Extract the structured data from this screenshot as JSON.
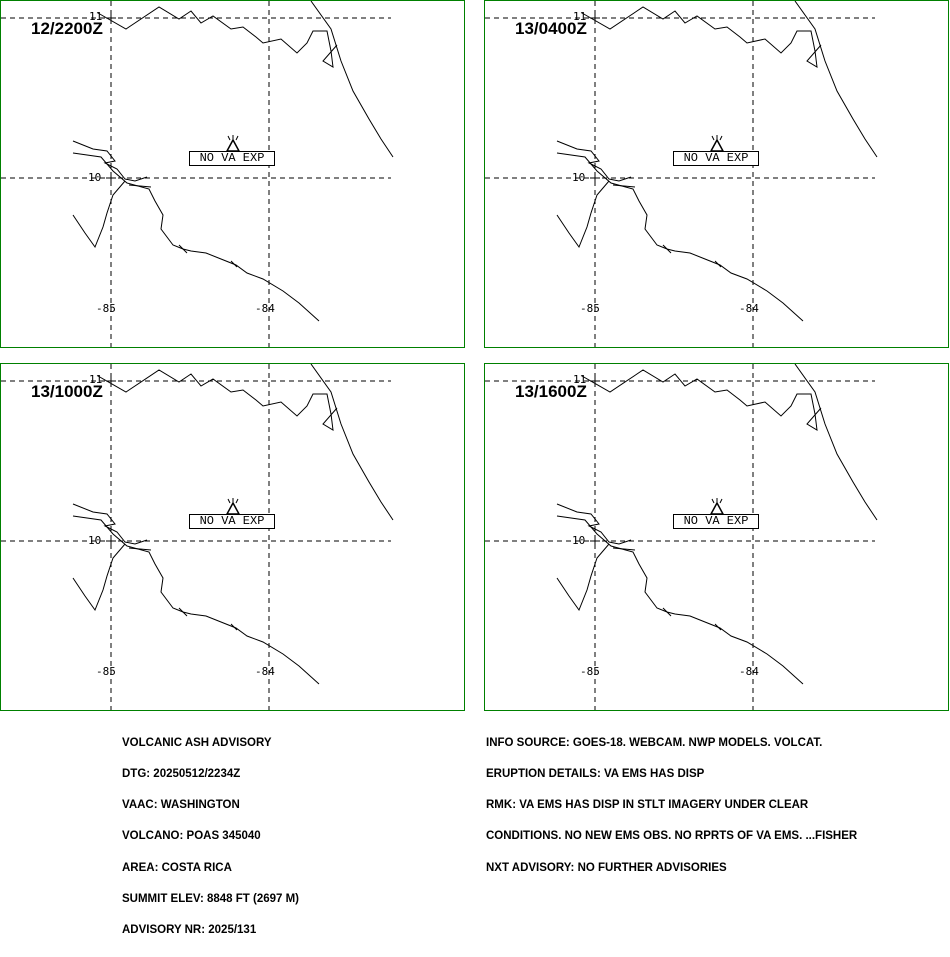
{
  "panels": [
    {
      "time": "12/2200Z",
      "label": "NO VA EXP"
    },
    {
      "time": "13/0400Z",
      "label": "NO VA EXP"
    },
    {
      "time": "13/1000Z",
      "label": "NO VA EXP"
    },
    {
      "time": "13/1600Z",
      "label": "NO VA EXP"
    }
  ],
  "axes": {
    "lat_top": "11",
    "lat_mid": "10",
    "lon_left": "-85",
    "lon_right": "-84"
  },
  "advisory_left": [
    "VOLCANIC ASH ADVISORY",
    "DTG: 20250512/2234Z",
    "VAAC: WASHINGTON",
    "VOLCANO: POAS 345040",
    "AREA: COSTA RICA",
    "SUMMIT ELEV: 8848 FT (2697 M)",
    "ADVISORY NR: 2025/131"
  ],
  "advisory_right": [
    "INFO SOURCE: GOES-18. WEBCAM. NWP MODELS. VOLCAT.",
    "ERUPTION DETAILS: VA EMS HAS DISP",
    "RMK: VA EMS HAS DISP IN STLT IMAGERY UNDER CLEAR",
    "CONDITIONS. NO NEW EMS OBS. NO RPRTS OF VA EMS. ...FISHER",
    "NXT ADVISORY: NO FURTHER ADVISORIES"
  ],
  "colors": {
    "panel_border": "#008000",
    "ink": "#000000"
  },
  "icons": {
    "volcano": "volcano-triangle-icon"
  }
}
